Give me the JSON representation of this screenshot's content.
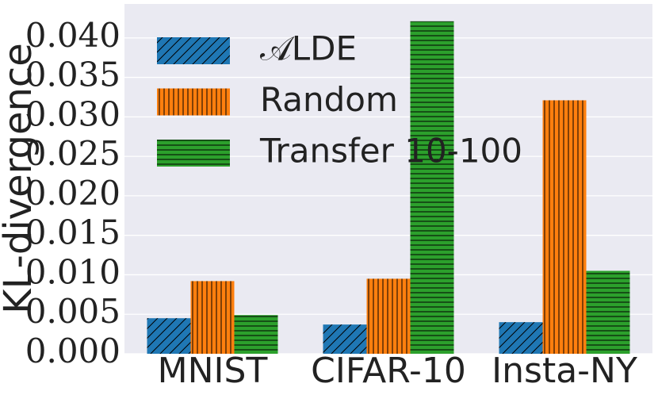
{
  "chart_data": {
    "type": "bar",
    "ylabel": "KL-divergence",
    "categories": [
      "MNIST",
      "CIFAR-10",
      "Insta-NY"
    ],
    "series": [
      {
        "name": "𝒜LDE",
        "color": "#1f77b4",
        "hatch": "/",
        "values": [
          0.0045,
          0.0037,
          0.004
        ]
      },
      {
        "name": "Random",
        "color": "#ff7f0e",
        "hatch": "|",
        "values": [
          0.0092,
          0.0095,
          0.0321
        ]
      },
      {
        "name": "Transfer 10-100",
        "color": "#2ca02c",
        "hatch": "-",
        "values": [
          0.0049,
          0.0421,
          0.0105
        ]
      }
    ],
    "ylim": [
      0,
      0.0443
    ],
    "yticks": [
      {
        "value": 0,
        "label": "0.000"
      },
      {
        "value": 0.005,
        "label": "0.005"
      },
      {
        "value": 0.01,
        "label": "0.010"
      },
      {
        "value": 0.015,
        "label": "0.015"
      },
      {
        "value": 0.02,
        "label": "0.020"
      },
      {
        "value": 0.025,
        "label": "0.025"
      },
      {
        "value": 0.03,
        "label": "0.030"
      },
      {
        "value": 0.035,
        "label": "0.035"
      },
      {
        "value": 0.04,
        "label": "0.040"
      }
    ],
    "grid": true,
    "legend": "upper left"
  }
}
